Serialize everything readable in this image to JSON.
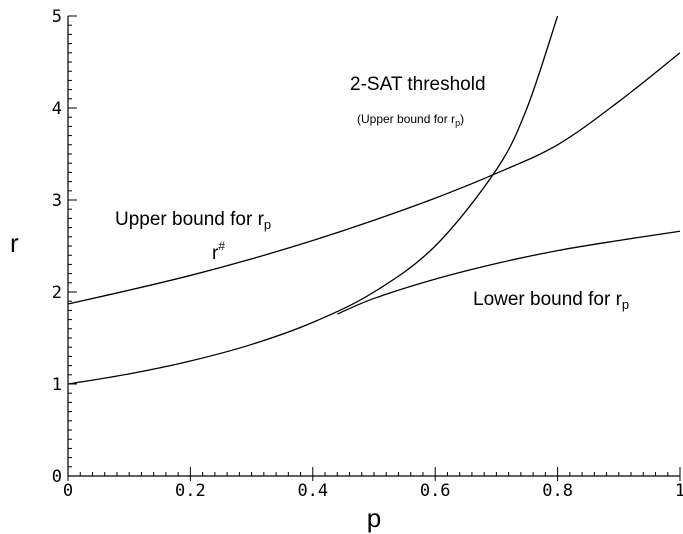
{
  "chart_data": {
    "type": "line",
    "xlabel": "p",
    "ylabel": "r",
    "xlim": [
      0,
      1
    ],
    "ylim": [
      0,
      5
    ],
    "x_ticks": [
      {
        "value": 0,
        "label": "0"
      },
      {
        "value": 0.2,
        "label": "0.2"
      },
      {
        "value": 0.4,
        "label": "0.4"
      },
      {
        "value": 0.6,
        "label": "0.6"
      },
      {
        "value": 0.8,
        "label": "0.8"
      },
      {
        "value": 1,
        "label": "1"
      }
    ],
    "y_ticks": [
      {
        "value": 0,
        "label": "0"
      },
      {
        "value": 1,
        "label": "1"
      },
      {
        "value": 2,
        "label": "2"
      },
      {
        "value": 3,
        "label": "3"
      },
      {
        "value": 4,
        "label": "4"
      },
      {
        "value": 5,
        "label": "5"
      }
    ],
    "grid": false,
    "series": [
      {
        "name": "2-SAT threshold",
        "x": [
          0,
          0.1,
          0.2,
          0.3,
          0.4,
          0.5,
          0.6,
          0.7,
          0.75,
          0.8
        ],
        "y": [
          1.0,
          1.11,
          1.25,
          1.43,
          1.67,
          2.0,
          2.5,
          3.33,
          4.0,
          5.0
        ]
      },
      {
        "name": "Upper bound for r_p (r#)",
        "x": [
          0,
          0.1,
          0.2,
          0.3,
          0.4,
          0.5,
          0.6,
          0.7,
          0.8,
          0.9,
          1.0
        ],
        "y": [
          1.87,
          2.02,
          2.18,
          2.36,
          2.56,
          2.78,
          3.02,
          3.29,
          3.6,
          4.07,
          4.6
        ]
      },
      {
        "name": "Lower bound for r_p",
        "x": [
          0.44,
          0.5,
          0.6,
          0.7,
          0.8,
          0.9,
          1.0
        ],
        "y": [
          1.76,
          1.93,
          2.14,
          2.31,
          2.45,
          2.56,
          2.66
        ]
      }
    ],
    "annotations": {
      "sat_title": "2-SAT threshold",
      "sat_sub": "(Upper bound for r",
      "sat_sub_sub": "p",
      "sat_sub_close": ")",
      "upper": "Upper bound for r",
      "upper_sub": "p",
      "rsharp": "r",
      "rsharp_sup": "#",
      "lower": "Lower bound for r",
      "lower_sub": "p"
    }
  }
}
